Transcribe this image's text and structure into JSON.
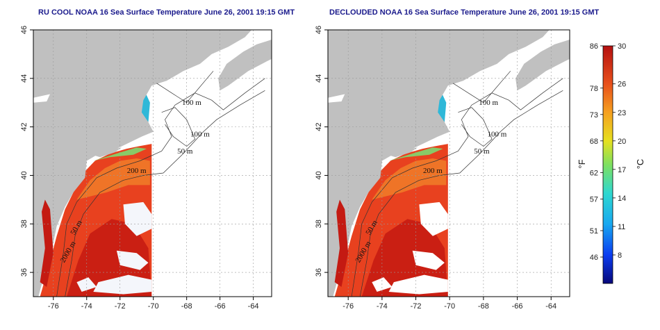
{
  "maps": [
    {
      "title": "RU COOL NOAA 16 Sea Surface Temperature June 26, 2001 19:15 GMT",
      "cloud_mode": "clouds"
    },
    {
      "title": "DECLOUDED NOAA 16 Sea Surface Temperature June 26, 2001 19:15 GMT",
      "cloud_mode": "declouded"
    }
  ],
  "axes": {
    "lon_ticks": [
      "-76",
      "-74",
      "-72",
      "-70",
      "-68",
      "-66",
      "-64"
    ],
    "lat_ticks": [
      "36",
      "38",
      "40",
      "42",
      "44",
      "46"
    ],
    "lon_range": [
      -77.2,
      -62.9
    ],
    "lat_range": [
      35,
      46
    ]
  },
  "contour_labels": [
    "100 m",
    "100 m",
    "50 m",
    "200 m",
    "50 m",
    "2000 m"
  ],
  "colorbar": {
    "fahrenheit_ticks": [
      "86",
      "78",
      "73",
      "68",
      "62",
      "57",
      "51",
      "46"
    ],
    "celsius_ticks": [
      "30",
      "26",
      "23",
      "20",
      "17",
      "14",
      "11",
      "8"
    ],
    "fahrenheit_label": "°F",
    "celsius_label": "°C",
    "range_c": [
      5,
      30
    ]
  },
  "colors": {
    "land": "#c0c0c0",
    "ocean_nodata": "#ffffff",
    "sst_warm": "#e8411f",
    "sst_hot": "#c41a12",
    "sst_mid": "#f07a28",
    "sst_cool": "#2fb8d8",
    "title": "#1a1a8c"
  }
}
